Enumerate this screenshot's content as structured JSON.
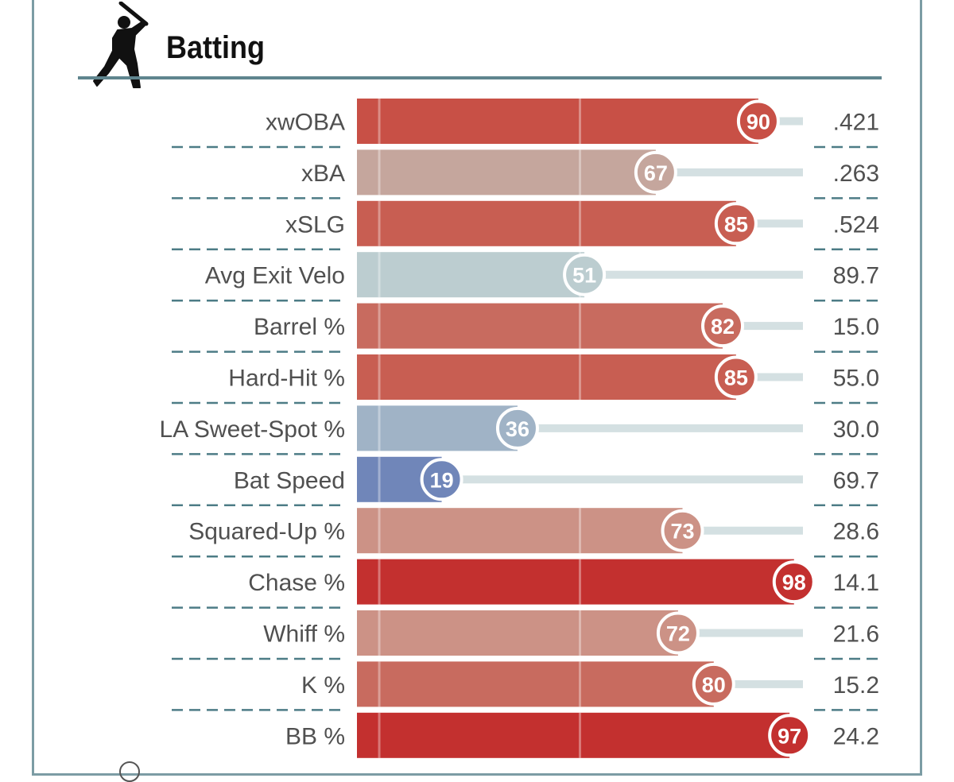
{
  "section": {
    "title": "Batting",
    "icon": "batter-silhouette-icon"
  },
  "colors": {
    "frame": "#7c9ca4",
    "header_line": "#5f858e",
    "track": "#d4e0e2",
    "divider": "#4d7c86"
  },
  "chart_data": {
    "type": "bar",
    "orientation": "horizontal",
    "title": "Batting",
    "xlim": [
      0,
      100
    ],
    "categories": [
      "xwOBA",
      "xBA",
      "xSLG",
      "Avg Exit Velo",
      "Barrel %",
      "Hard-Hit %",
      "LA Sweet-Spot %",
      "Bat Speed",
      "Squared-Up %",
      "Chase %",
      "Whiff %",
      "K %",
      "BB %"
    ],
    "percentiles": [
      90,
      67,
      85,
      51,
      82,
      85,
      36,
      19,
      73,
      98,
      72,
      80,
      97
    ],
    "stat_values": [
      ".421",
      ".263",
      ".524",
      "89.7",
      "15.0",
      "55.0",
      "30.0",
      "69.7",
      "28.6",
      "14.1",
      "21.6",
      "15.2",
      "24.2"
    ],
    "bar_colors": [
      "#c85046",
      "#c5a69d",
      "#c85e52",
      "#bccdd0",
      "#c86b5f",
      "#c85e52",
      "#a0b3c6",
      "#7086b9",
      "#cc9286",
      "#c3302f",
      "#cc9286",
      "#c86b5f",
      "#c3302f"
    ]
  }
}
